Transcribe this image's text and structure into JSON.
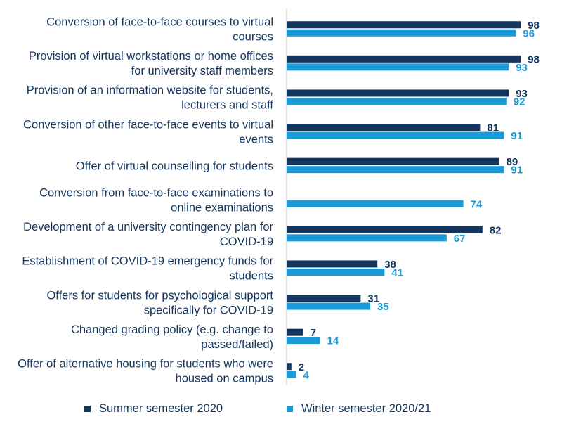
{
  "chart_data": {
    "type": "bar",
    "orientation": "horizontal",
    "categories": [
      [
        "Conversion of face-to-face courses to virtual",
        "courses"
      ],
      [
        "Provision of virtual workstations or home offices",
        "for university staff members"
      ],
      [
        "Provision of an information website for students,",
        "lecturers and staff"
      ],
      [
        "Conversion of other face-to-face events to virtual",
        "events"
      ],
      [
        "Offer of virtual counselling for students"
      ],
      [
        "Conversion from face-to-face examinations to",
        "online examinations"
      ],
      [
        "Development of a university contingency plan for",
        "COVID-19"
      ],
      [
        "Establishment of COVID-19 emergency funds for",
        "students"
      ],
      [
        "Offers for students for psychological support",
        "specifically for COVID-19"
      ],
      [
        "Changed grading policy (e.g. change to",
        "passed/failed)"
      ],
      [
        "Offer of alternative housing for students who were",
        "housed on campus"
      ]
    ],
    "series": [
      {
        "name": "Summer semester 2020",
        "color": "#14355e",
        "values": [
          98,
          98,
          93,
          81,
          89,
          null,
          82,
          38,
          31,
          7,
          2
        ]
      },
      {
        "name": "Winter semester 2020/21",
        "color": "#1a9ad6",
        "values": [
          96,
          93,
          92,
          91,
          91,
          74,
          67,
          41,
          35,
          14,
          4
        ]
      }
    ],
    "xlim": [
      0,
      100
    ],
    "grid": false,
    "legend_position": "bottom"
  },
  "legend": {
    "summer_label": "Summer semester 2020",
    "winter_label": "Winter semester 2020/21"
  }
}
